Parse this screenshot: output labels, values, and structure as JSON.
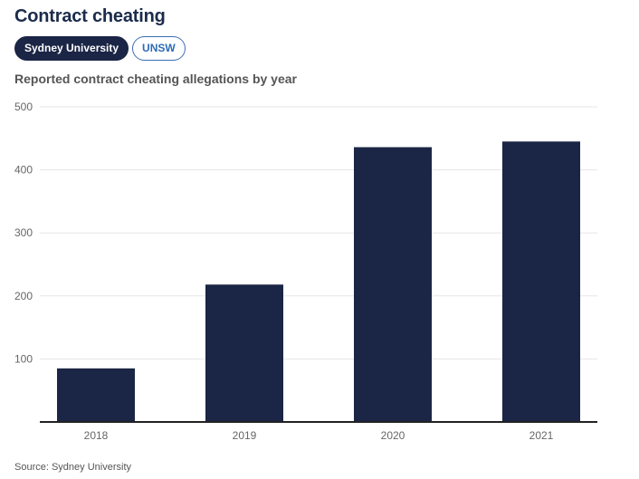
{
  "page": {
    "title": "Contract cheating",
    "tabs": [
      {
        "label": "Sydney University",
        "active": true
      },
      {
        "label": "UNSW",
        "active": false
      }
    ],
    "source": "Source: Sydney University"
  },
  "chart_data": {
    "type": "bar",
    "title": "Reported contract cheating allegations by year",
    "categories": [
      "2018",
      "2019",
      "2020",
      "2021"
    ],
    "values": [
      85,
      218,
      436,
      445
    ],
    "xlabel": "",
    "ylabel": "",
    "ylim": [
      0,
      500
    ],
    "yticks": [
      100,
      200,
      300,
      400,
      500
    ],
    "grid": true,
    "bar_color": "#1b2545",
    "grid_color": "#e6e6e6",
    "axis_color": "#222222"
  }
}
